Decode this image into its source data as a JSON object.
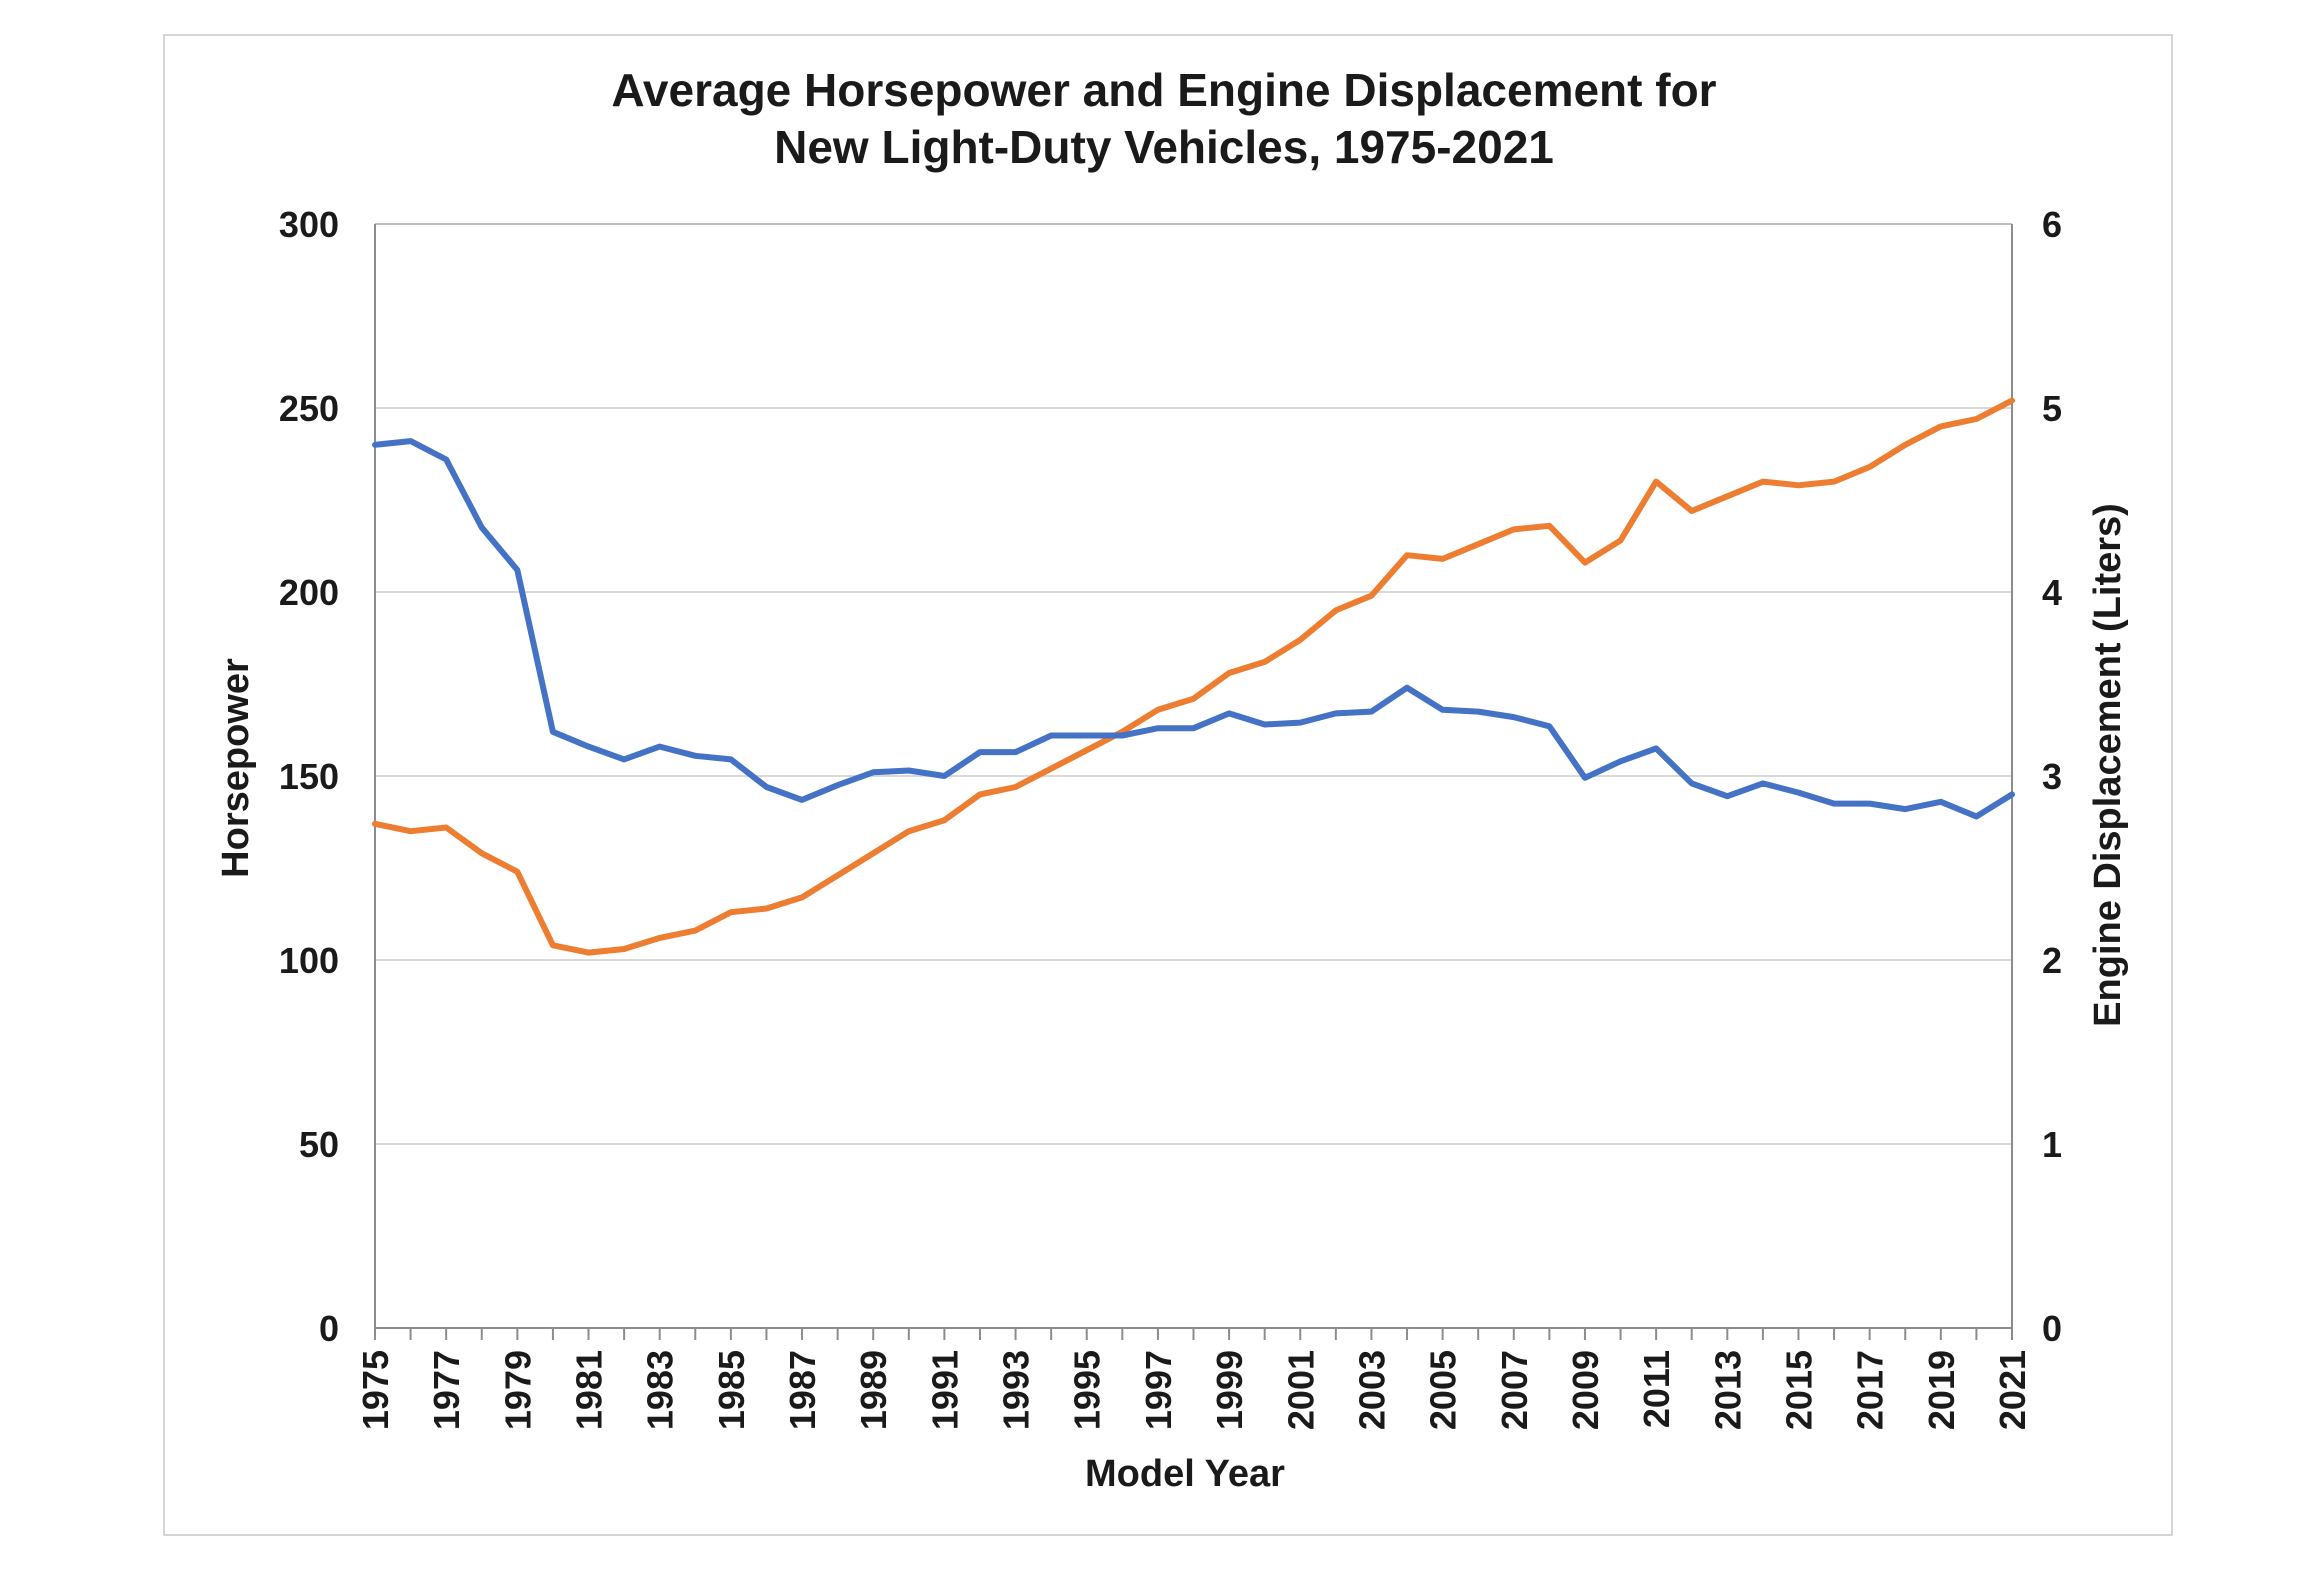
{
  "chart_data": {
    "type": "line",
    "title_lines": [
      "Average Horsepower and Engine Displacement for",
      "New Light-Duty Vehicles, 1975-2021"
    ],
    "xlabel": "Model Year",
    "ylabel_left": "Horsepower",
    "ylabel_right": "Engine Displacement (Liters)",
    "ylim_left": [
      0,
      300
    ],
    "ylim_right": [
      0,
      6
    ],
    "yticks_left": [
      0,
      50,
      100,
      150,
      200,
      250,
      300
    ],
    "yticks_right": [
      0,
      1,
      2,
      3,
      4,
      5,
      6
    ],
    "xtick_labels": [
      "1975",
      "1977",
      "1979",
      "1981",
      "1983",
      "1985",
      "1987",
      "1989",
      "1991",
      "1993",
      "1995",
      "1997",
      "1999",
      "2001",
      "2003",
      "2005",
      "2007",
      "2009",
      "2011",
      "2013",
      "2015",
      "2017",
      "2019",
      "2021"
    ],
    "grid": true,
    "x": [
      1975,
      1976,
      1977,
      1978,
      1979,
      1980,
      1981,
      1982,
      1983,
      1984,
      1985,
      1986,
      1987,
      1988,
      1989,
      1990,
      1991,
      1992,
      1993,
      1994,
      1995,
      1996,
      1997,
      1998,
      1999,
      2000,
      2001,
      2002,
      2003,
      2004,
      2005,
      2006,
      2007,
      2008,
      2009,
      2010,
      2011,
      2012,
      2013,
      2014,
      2015,
      2016,
      2017,
      2018,
      2019,
      2020,
      2021
    ],
    "series": [
      {
        "name": "Horsepower",
        "axis": "left",
        "color": "#ed7d31",
        "values": [
          137,
          135,
          136,
          129,
          124,
          104,
          102,
          103,
          106,
          108,
          113,
          114,
          117,
          123,
          129,
          135,
          138,
          145,
          147,
          152,
          157,
          162,
          168,
          171,
          178,
          181,
          187,
          195,
          199,
          210,
          209,
          213,
          217,
          218,
          208,
          214,
          230,
          222,
          226,
          230,
          229,
          230,
          234,
          240,
          245,
          247,
          252
        ]
      },
      {
        "name": "Engine Displacement",
        "axis": "right",
        "color": "#4472c4",
        "values": [
          4.8,
          4.82,
          4.72,
          4.35,
          4.12,
          3.24,
          3.16,
          3.09,
          3.16,
          3.11,
          3.09,
          2.94,
          2.87,
          2.95,
          3.02,
          3.03,
          3.0,
          3.13,
          3.13,
          3.22,
          3.22,
          3.22,
          3.26,
          3.26,
          3.34,
          3.28,
          3.29,
          3.34,
          3.35,
          3.48,
          3.36,
          3.35,
          3.32,
          3.27,
          2.99,
          3.08,
          3.15,
          2.96,
          2.89,
          2.96,
          2.91,
          2.85,
          2.85,
          2.82,
          2.86,
          2.78,
          2.9
        ]
      }
    ]
  }
}
